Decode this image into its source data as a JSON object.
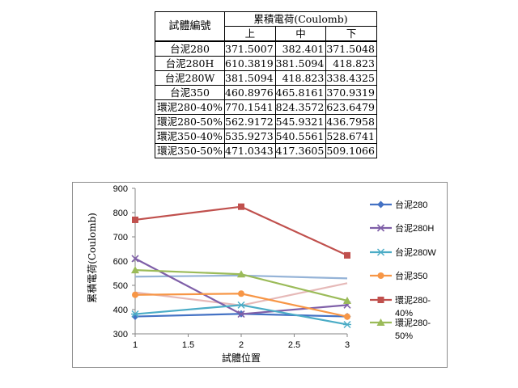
{
  "table": {
    "header_id": "試體編號",
    "header_group": "累積電荷(Coulomb)",
    "positions": [
      "上",
      "中",
      "下"
    ],
    "rows": [
      {
        "name": "台泥280",
        "values": [
          "371.5007",
          "382.401",
          "371.5048"
        ]
      },
      {
        "name": "台泥280H",
        "values": [
          "610.3819",
          "381.5094",
          "418.823"
        ]
      },
      {
        "name": "台泥280W",
        "values": [
          "381.5094",
          "418.823",
          "338.4325"
        ]
      },
      {
        "name": "台泥350",
        "values": [
          "460.8976",
          "465.8161",
          "370.9319"
        ]
      },
      {
        "name": "環泥280-40%",
        "values": [
          "770.1541",
          "824.3572",
          "623.6479"
        ]
      },
      {
        "name": "環泥280-50%",
        "values": [
          "562.9172",
          "545.9321",
          "436.7958"
        ]
      },
      {
        "name": "環泥350-40%",
        "values": [
          "535.9273",
          "540.5561",
          "528.6741"
        ]
      },
      {
        "name": "環泥350-50%",
        "values": [
          "471.0343",
          "417.3605",
          "509.1066"
        ]
      }
    ]
  },
  "chart_data": {
    "type": "line",
    "xlabel": "試體位置",
    "ylabel": "累積電荷(Coulomb)",
    "x": [
      1,
      2,
      3
    ],
    "xlim": [
      1,
      3
    ],
    "ylim": [
      300,
      900
    ],
    "x_ticks": [
      "1",
      "1.5",
      "2",
      "2.5",
      "3"
    ],
    "x_tick_values": [
      1,
      1.5,
      2,
      2.5,
      3
    ],
    "y_ticks": [
      "300",
      "400",
      "500",
      "600",
      "700",
      "800",
      "900"
    ],
    "y_tick_values": [
      300,
      400,
      500,
      600,
      700,
      800,
      900
    ],
    "grid": false,
    "legend_position": "right",
    "series": [
      {
        "name": "台泥280",
        "values": [
          371.5007,
          382.401,
          371.5048
        ],
        "color": "#4472C4",
        "marker": "diamond",
        "legend": [
          "台泥280"
        ]
      },
      {
        "name": "台泥280H",
        "values": [
          610.3819,
          381.5094,
          418.823
        ],
        "color": "#7F5FA8",
        "marker": "x",
        "legend": [
          "台泥280H"
        ]
      },
      {
        "name": "台泥280W",
        "values": [
          381.5094,
          418.823,
          338.4325
        ],
        "color": "#4BACC6",
        "marker": "star",
        "legend": [
          "台泥280W"
        ]
      },
      {
        "name": "台泥350",
        "values": [
          460.8976,
          465.8161,
          370.9319
        ],
        "color": "#F79646",
        "marker": "circle",
        "legend": [
          "台泥350"
        ]
      },
      {
        "name": "環泥280-40%",
        "values": [
          770.1541,
          824.3572,
          623.6479
        ],
        "color": "#C0504D",
        "marker": "square",
        "legend": [
          "環泥280-",
          "40%"
        ]
      },
      {
        "name": "環泥280-50%",
        "values": [
          562.9172,
          545.9321,
          436.7958
        ],
        "color": "#9BBB59",
        "marker": "triangle",
        "legend": [
          "環泥280-",
          "50%"
        ]
      },
      {
        "name": "環泥350-40%",
        "values": [
          535.9273,
          540.5561,
          528.6741
        ],
        "color": "#95B3D7",
        "marker": "none",
        "legend": []
      },
      {
        "name": "環泥350-50%",
        "values": [
          471.0343,
          417.3605,
          509.1066
        ],
        "color": "#E6B9B8",
        "marker": "none",
        "legend": []
      }
    ]
  }
}
